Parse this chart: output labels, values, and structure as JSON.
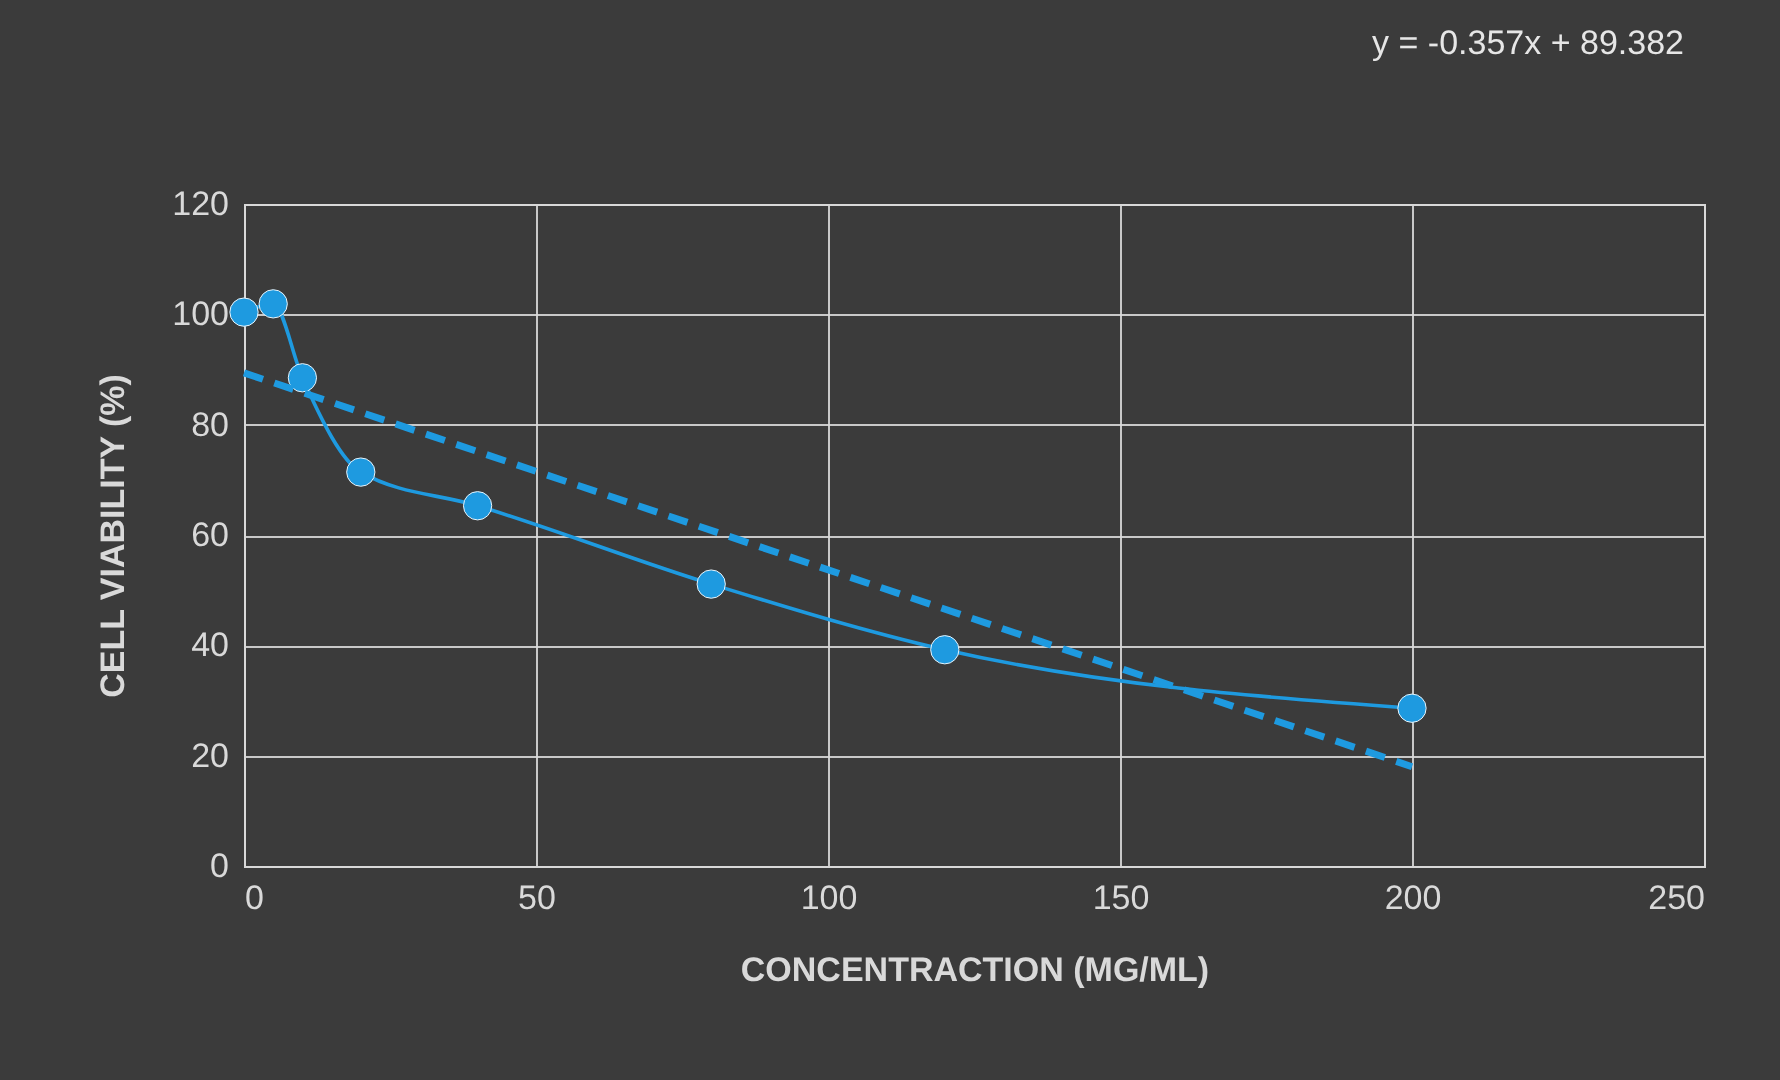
{
  "chart_data": {
    "type": "line",
    "xlabel": "CONCENTRACTION (MG/ML)",
    "ylabel": "CELL VIABILITY (%)",
    "annotations": [
      "y = -0.357x + 89.382"
    ],
    "series": [
      {
        "color": "#1e9ae0",
        "marker": "circle",
        "line_style": "solid",
        "x": [
          0,
          5,
          10,
          20,
          40,
          80,
          120,
          200
        ],
        "values": [
          100.4,
          101.9,
          88.5,
          71.4,
          65.3,
          51.1,
          39.2,
          28.6
        ]
      },
      {
        "color": "#1e9ae0",
        "marker": "none",
        "line_style": "dashed",
        "x": [
          0,
          200
        ],
        "values": [
          89.4,
          18.0
        ]
      }
    ],
    "xlim": [
      0,
      250
    ],
    "xticks": [
      0,
      50,
      100,
      150,
      200,
      250
    ],
    "ylim": [
      0,
      120
    ],
    "yticks": [
      0,
      20,
      40,
      60,
      80,
      100,
      120
    ],
    "grid": true,
    "legend": false
  }
}
